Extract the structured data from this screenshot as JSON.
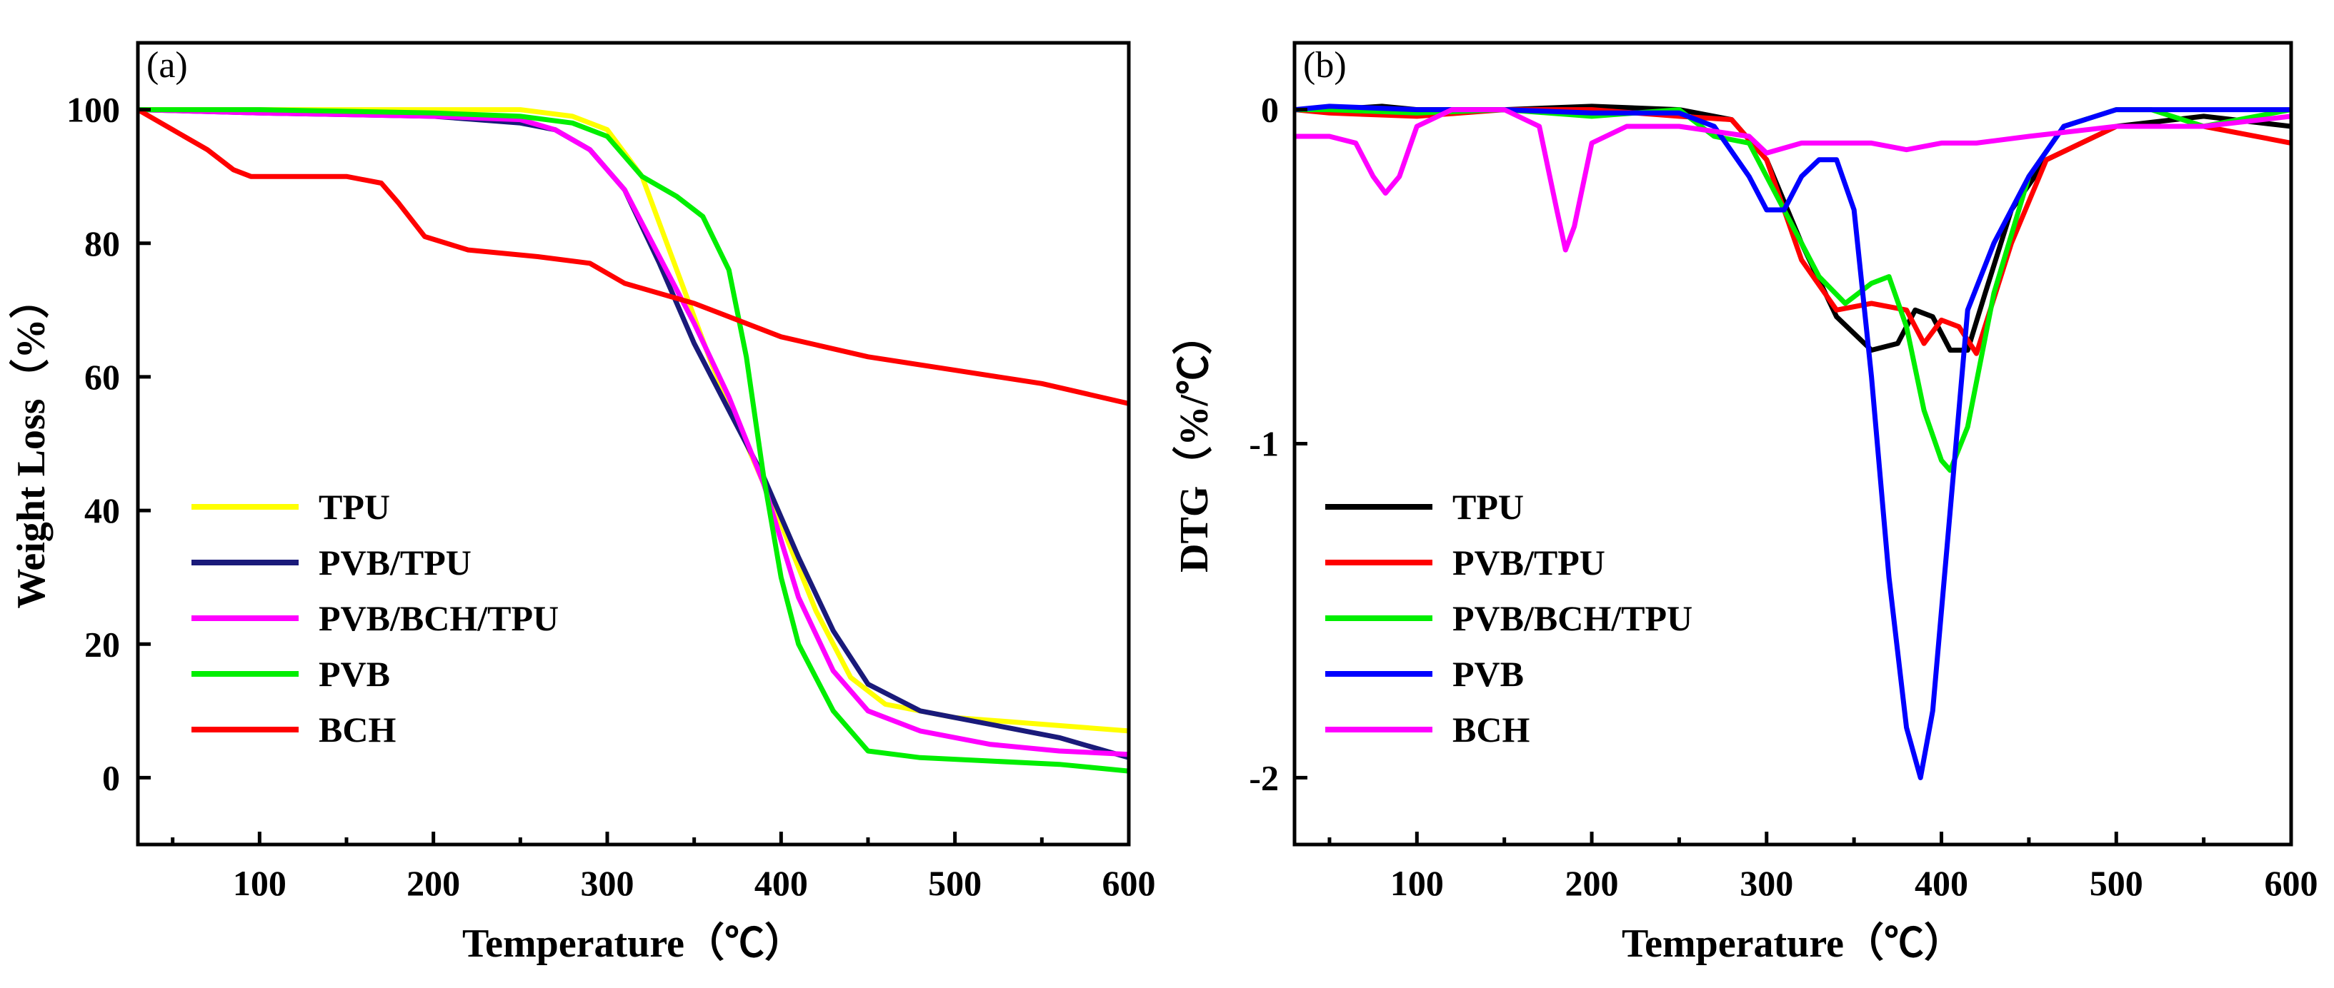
{
  "chart_data": [
    {
      "type": "line",
      "panel_label": "(a)",
      "xlabel": "Temperature（℃）",
      "ylabel": "Weight Loss（%）",
      "xlim": [
        30,
        600
      ],
      "ylim": [
        -10,
        110
      ],
      "xticks": [
        100,
        200,
        300,
        400,
        500,
        600
      ],
      "yticks": [
        0,
        20,
        40,
        60,
        80,
        100
      ],
      "legend_position": "bottom-left",
      "series": [
        {
          "name": "TPU",
          "color": "#ffff00",
          "x": [
            30,
            100,
            200,
            250,
            280,
            300,
            320,
            340,
            360,
            380,
            400,
            420,
            440,
            460,
            500,
            550,
            600
          ],
          "y": [
            100,
            100,
            100,
            100,
            99,
            97,
            90,
            76,
            62,
            50,
            38,
            25,
            15,
            11,
            9,
            8,
            7
          ]
        },
        {
          "name": "PVB/TPU",
          "color": "#1a1a7a",
          "x": [
            30,
            100,
            200,
            250,
            270,
            290,
            310,
            330,
            350,
            370,
            390,
            410,
            430,
            450,
            480,
            520,
            560,
            600
          ],
          "y": [
            100,
            99.5,
            99,
            98,
            97,
            94,
            88,
            77,
            65,
            55,
            45,
            33,
            22,
            14,
            10,
            8,
            6,
            3
          ]
        },
        {
          "name": "PVB/BCH/TPU",
          "color": "#ff00ff",
          "x": [
            30,
            100,
            200,
            250,
            270,
            290,
            310,
            330,
            350,
            370,
            390,
            410,
            430,
            450,
            480,
            520,
            560,
            600
          ],
          "y": [
            100,
            99.5,
            99,
            98.5,
            97,
            94,
            88,
            78,
            68,
            57,
            44,
            27,
            16,
            10,
            7,
            5,
            4,
            3.5
          ]
        },
        {
          "name": "PVB",
          "color": "#00ee00",
          "x": [
            30,
            100,
            200,
            250,
            280,
            300,
            320,
            340,
            355,
            370,
            380,
            390,
            400,
            410,
            430,
            450,
            480,
            520,
            560,
            600
          ],
          "y": [
            100,
            100,
            99.5,
            99,
            98,
            96,
            90,
            87,
            84,
            76,
            63,
            45,
            30,
            20,
            10,
            4,
            3,
            2.5,
            2,
            1
          ]
        },
        {
          "name": "BCH",
          "color": "#ff0000",
          "x": [
            30,
            50,
            70,
            85,
            95,
            110,
            150,
            170,
            180,
            195,
            220,
            260,
            290,
            310,
            350,
            400,
            450,
            500,
            550,
            600
          ],
          "y": [
            100,
            97,
            94,
            91,
            90,
            90,
            90,
            89,
            86,
            81,
            79,
            78,
            77,
            74,
            71,
            66,
            63,
            61,
            59,
            56
          ]
        }
      ]
    },
    {
      "type": "line",
      "panel_label": "(b)",
      "xlabel": "Temperature（℃）",
      "ylabel": "DTG（%/℃）",
      "xlim": [
        30,
        600
      ],
      "ylim": [
        -2.2,
        0.2
      ],
      "xticks": [
        100,
        200,
        300,
        400,
        500,
        600
      ],
      "yticks": [
        0,
        -1,
        -2
      ],
      "legend_position": "bottom-left",
      "series": [
        {
          "name": "TPU",
          "color": "#000000",
          "x": [
            30,
            50,
            80,
            100,
            150,
            200,
            250,
            280,
            300,
            320,
            340,
            360,
            375,
            385,
            395,
            405,
            415,
            425,
            440,
            460,
            500,
            550,
            600
          ],
          "y": [
            0,
            0,
            0.01,
            0,
            0,
            0.01,
            0,
            -0.03,
            -0.15,
            -0.4,
            -0.62,
            -0.72,
            -0.7,
            -0.6,
            -0.62,
            -0.72,
            -0.72,
            -0.55,
            -0.3,
            -0.15,
            -0.05,
            -0.02,
            -0.05
          ]
        },
        {
          "name": "PVB/TPU",
          "color": "#ff0000",
          "x": [
            30,
            50,
            100,
            150,
            200,
            250,
            280,
            300,
            320,
            340,
            360,
            380,
            390,
            400,
            410,
            420,
            440,
            460,
            500,
            550,
            600
          ],
          "y": [
            0,
            -0.01,
            -0.02,
            0,
            0,
            -0.02,
            -0.03,
            -0.15,
            -0.45,
            -0.6,
            -0.58,
            -0.6,
            -0.7,
            -0.63,
            -0.65,
            -0.73,
            -0.4,
            -0.15,
            -0.05,
            -0.05,
            -0.1
          ]
        },
        {
          "name": "PVB/BCH/TPU",
          "color": "#00ee00",
          "x": [
            30,
            50,
            100,
            150,
            200,
            250,
            270,
            290,
            310,
            330,
            345,
            360,
            370,
            380,
            390,
            400,
            405,
            415,
            430,
            450,
            470,
            500,
            520,
            550,
            600
          ],
          "y": [
            0,
            0,
            -0.01,
            0,
            -0.02,
            0,
            -0.08,
            -0.1,
            -0.3,
            -0.5,
            -0.58,
            -0.52,
            -0.5,
            -0.65,
            -0.9,
            -1.05,
            -1.08,
            -0.95,
            -0.55,
            -0.2,
            -0.05,
            0,
            0,
            -0.05,
            0
          ]
        },
        {
          "name": "PVB",
          "color": "#0000ff",
          "x": [
            30,
            50,
            100,
            150,
            200,
            250,
            270,
            290,
            300,
            310,
            320,
            330,
            340,
            350,
            360,
            370,
            380,
            388,
            395,
            405,
            415,
            430,
            450,
            470,
            500,
            550,
            600
          ],
          "y": [
            0,
            0.01,
            0,
            0,
            -0.01,
            -0.01,
            -0.05,
            -0.2,
            -0.3,
            -0.3,
            -0.2,
            -0.15,
            -0.15,
            -0.3,
            -0.8,
            -1.4,
            -1.85,
            -2.0,
            -1.8,
            -1.2,
            -0.6,
            -0.4,
            -0.2,
            -0.05,
            0,
            0,
            0
          ]
        },
        {
          "name": "BCH",
          "color": "#ff00ff",
          "x": [
            30,
            50,
            65,
            75,
            82,
            90,
            100,
            120,
            150,
            170,
            180,
            185,
            190,
            200,
            220,
            250,
            290,
            300,
            320,
            340,
            360,
            380,
            400,
            420,
            450,
            500,
            550,
            600
          ],
          "y": [
            -0.08,
            -0.08,
            -0.1,
            -0.2,
            -0.25,
            -0.2,
            -0.05,
            0,
            0,
            -0.05,
            -0.3,
            -0.42,
            -0.35,
            -0.1,
            -0.05,
            -0.05,
            -0.08,
            -0.13,
            -0.1,
            -0.1,
            -0.1,
            -0.12,
            -0.1,
            -0.1,
            -0.08,
            -0.05,
            -0.05,
            -0.02
          ]
        }
      ]
    }
  ]
}
